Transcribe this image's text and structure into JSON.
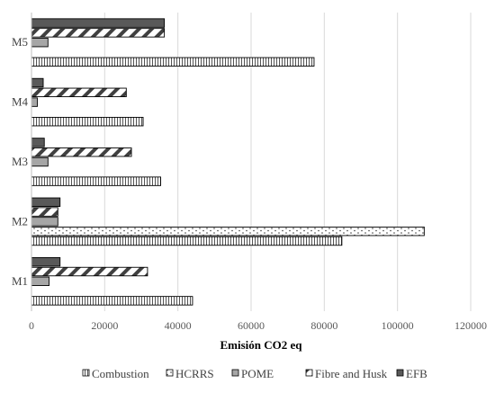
{
  "chart_data": {
    "type": "bar",
    "orientation": "horizontal",
    "categories": [
      "M1",
      "M2",
      "M3",
      "M4",
      "M5"
    ],
    "series": [
      {
        "name": "Combustion",
        "values": [
          44000,
          84800,
          35300,
          30500,
          77200
        ],
        "fill": "#ffffff",
        "pattern": "dense-vertical-lines"
      },
      {
        "name": "HCRRS",
        "values": [
          0,
          107300,
          0,
          0,
          0
        ],
        "fill": "#ffffff",
        "pattern": "dots"
      },
      {
        "name": "POME",
        "values": [
          4800,
          7200,
          4500,
          1600,
          4500
        ],
        "fill": "#a6a6a6",
        "pattern": "solid"
      },
      {
        "name": "Fibre and Husk",
        "values": [
          31700,
          7200,
          27300,
          25900,
          36300
        ],
        "fill": "#ffffff",
        "pattern": "diagonal-stripes"
      },
      {
        "name": "EFB",
        "values": [
          7800,
          7800,
          3500,
          3200,
          36300
        ],
        "fill": "#595959",
        "pattern": "solid"
      }
    ],
    "xlabel": "Emisión CO2 eq",
    "ylabel": "",
    "xlim": [
      0,
      120000
    ],
    "xticks": [
      "0",
      "20000",
      "40000",
      "60000",
      "80000",
      "100000",
      "120000"
    ],
    "grid": "vertical",
    "legend_position": "bottom"
  }
}
